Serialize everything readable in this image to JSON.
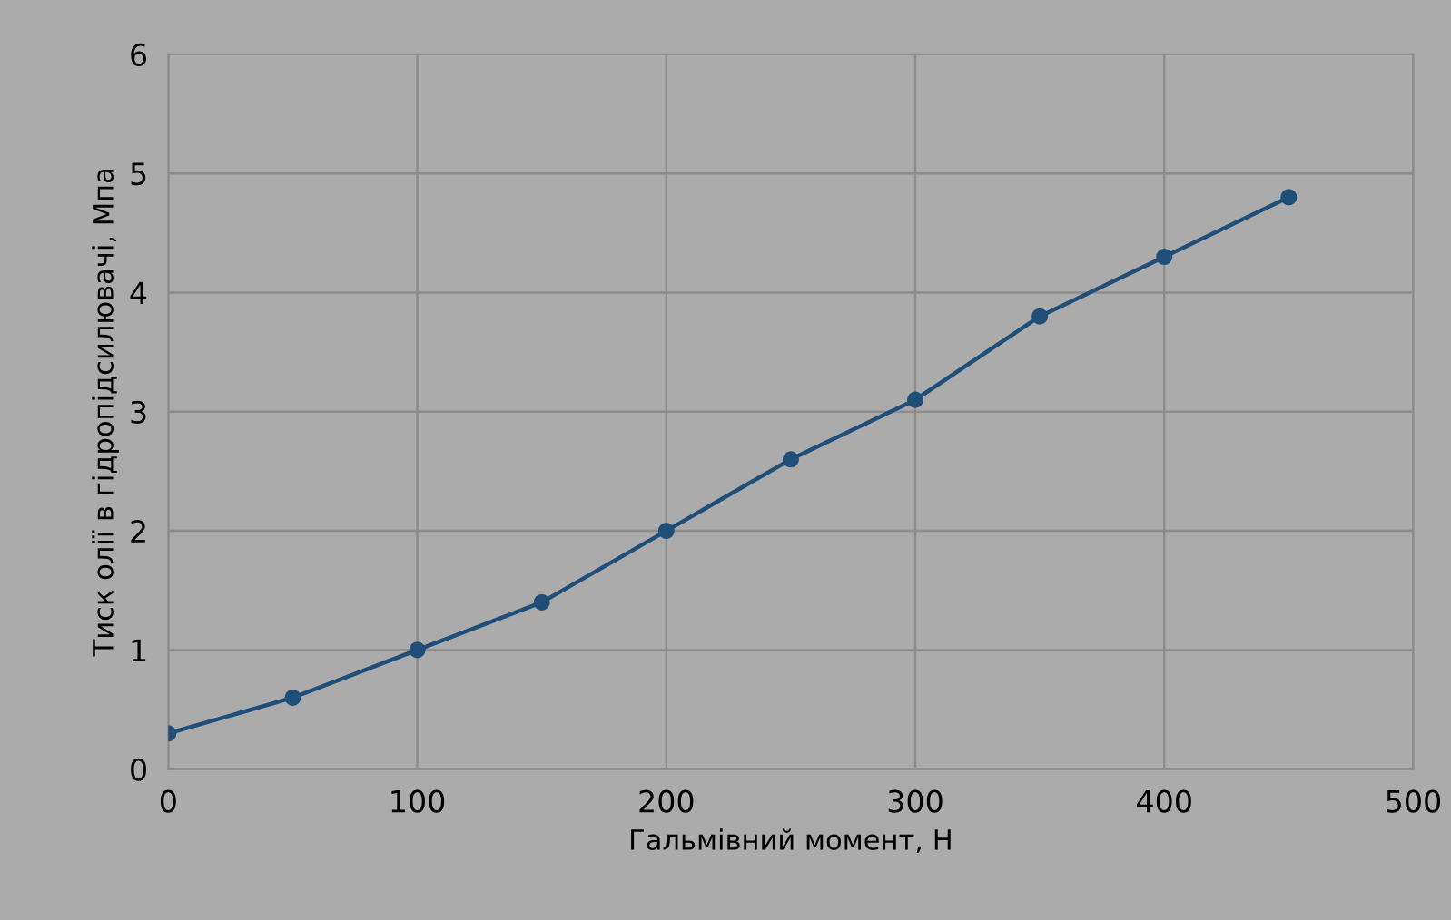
{
  "chart_data": {
    "type": "line",
    "xlabel": "Гальмівний момент, Н",
    "ylabel": "Тиск олії в гідропідсилювачі, Мпа",
    "x": [
      0,
      50,
      100,
      150,
      200,
      250,
      300,
      350,
      400,
      450
    ],
    "series": [
      {
        "color": "#1f4e79",
        "values": [
          0.3,
          0.6,
          1.0,
          1.4,
          2.0,
          2.6,
          3.1,
          3.8,
          4.3,
          4.8
        ]
      }
    ],
    "xlim": [
      0,
      500
    ],
    "xticks": [
      0,
      100,
      200,
      300,
      400,
      500
    ],
    "ylim": [
      0,
      6
    ],
    "yticks": [
      0,
      1,
      2,
      3,
      4,
      5,
      6
    ],
    "grid": true,
    "legend": false,
    "marker": "circle",
    "line_style": "solid"
  }
}
